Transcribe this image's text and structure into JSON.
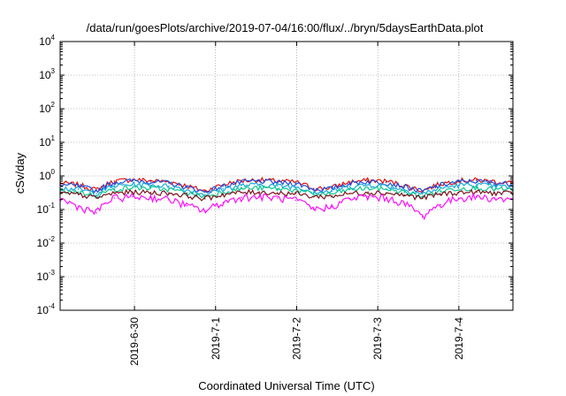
{
  "chart_data": {
    "type": "line",
    "title": "/data/run/goesPlots/archive/2019-07-04/16:00/flux/../bryn/5daysEarthData.plot",
    "xlabel": "Coordinated Universal Time (UTC)",
    "ylabel": "cSv/day",
    "yscale": "log",
    "ylim": [
      0.0001,
      10000
    ],
    "y_ticks": [
      {
        "base": "10",
        "exp": "4",
        "value": 10000
      },
      {
        "base": "10",
        "exp": "3",
        "value": 1000
      },
      {
        "base": "10",
        "exp": "2",
        "value": 100
      },
      {
        "base": "10",
        "exp": "1",
        "value": 10
      },
      {
        "base": "10",
        "exp": "0",
        "value": 1
      },
      {
        "base": "10",
        "exp": "-1",
        "value": 0.1
      },
      {
        "base": "10",
        "exp": "-2",
        "value": 0.01
      },
      {
        "base": "10",
        "exp": "-3",
        "value": 0.001
      },
      {
        "base": "10",
        "exp": "-4",
        "value": 0.0001
      }
    ],
    "xlim": [
      "2019-06-29 02:00",
      "2019-07-04 16:00"
    ],
    "x_ticks": [
      "2019-6-30",
      "2019-7-1",
      "2019-7-2",
      "2019-7-3",
      "2019-7-4"
    ],
    "grid": true,
    "series": [
      {
        "color": "#e01010",
        "values": [
          0.62,
          0.55,
          0.38,
          0.7,
          0.78,
          0.72,
          0.68,
          0.5,
          0.35,
          0.55,
          0.72,
          0.76,
          0.7,
          0.66,
          0.42,
          0.45,
          0.66,
          0.74,
          0.7,
          0.52,
          0.36,
          0.58,
          0.73,
          0.75,
          0.68,
          0.62
        ]
      },
      {
        "color": "#2050e0",
        "values": [
          0.55,
          0.5,
          0.36,
          0.64,
          0.72,
          0.68,
          0.62,
          0.46,
          0.33,
          0.5,
          0.66,
          0.7,
          0.64,
          0.6,
          0.4,
          0.42,
          0.6,
          0.68,
          0.64,
          0.48,
          0.34,
          0.54,
          0.67,
          0.7,
          0.62,
          0.58
        ]
      },
      {
        "color": "#1aa8e0",
        "values": [
          0.44,
          0.4,
          0.3,
          0.5,
          0.56,
          0.53,
          0.5,
          0.38,
          0.28,
          0.41,
          0.52,
          0.55,
          0.51,
          0.48,
          0.33,
          0.35,
          0.48,
          0.54,
          0.51,
          0.39,
          0.29,
          0.43,
          0.53,
          0.55,
          0.5,
          0.46
        ]
      },
      {
        "color": "#10c890",
        "values": [
          0.36,
          0.33,
          0.26,
          0.4,
          0.45,
          0.43,
          0.4,
          0.31,
          0.24,
          0.33,
          0.42,
          0.44,
          0.41,
          0.39,
          0.28,
          0.29,
          0.39,
          0.43,
          0.41,
          0.32,
          0.25,
          0.35,
          0.43,
          0.44,
          0.4,
          0.38
        ]
      },
      {
        "color": "#7a1520",
        "values": [
          0.3,
          0.28,
          0.22,
          0.31,
          0.33,
          0.32,
          0.31,
          0.26,
          0.21,
          0.28,
          0.32,
          0.33,
          0.31,
          0.3,
          0.24,
          0.25,
          0.3,
          0.33,
          0.31,
          0.27,
          0.22,
          0.29,
          0.32,
          0.33,
          0.31,
          0.3
        ]
      },
      {
        "color": "#ff10ff",
        "values": [
          0.2,
          0.12,
          0.08,
          0.22,
          0.24,
          0.23,
          0.2,
          0.13,
          0.09,
          0.16,
          0.23,
          0.24,
          0.22,
          0.19,
          0.1,
          0.12,
          0.21,
          0.24,
          0.22,
          0.15,
          0.06,
          0.14,
          0.22,
          0.24,
          0.21,
          0.2
        ]
      }
    ]
  }
}
